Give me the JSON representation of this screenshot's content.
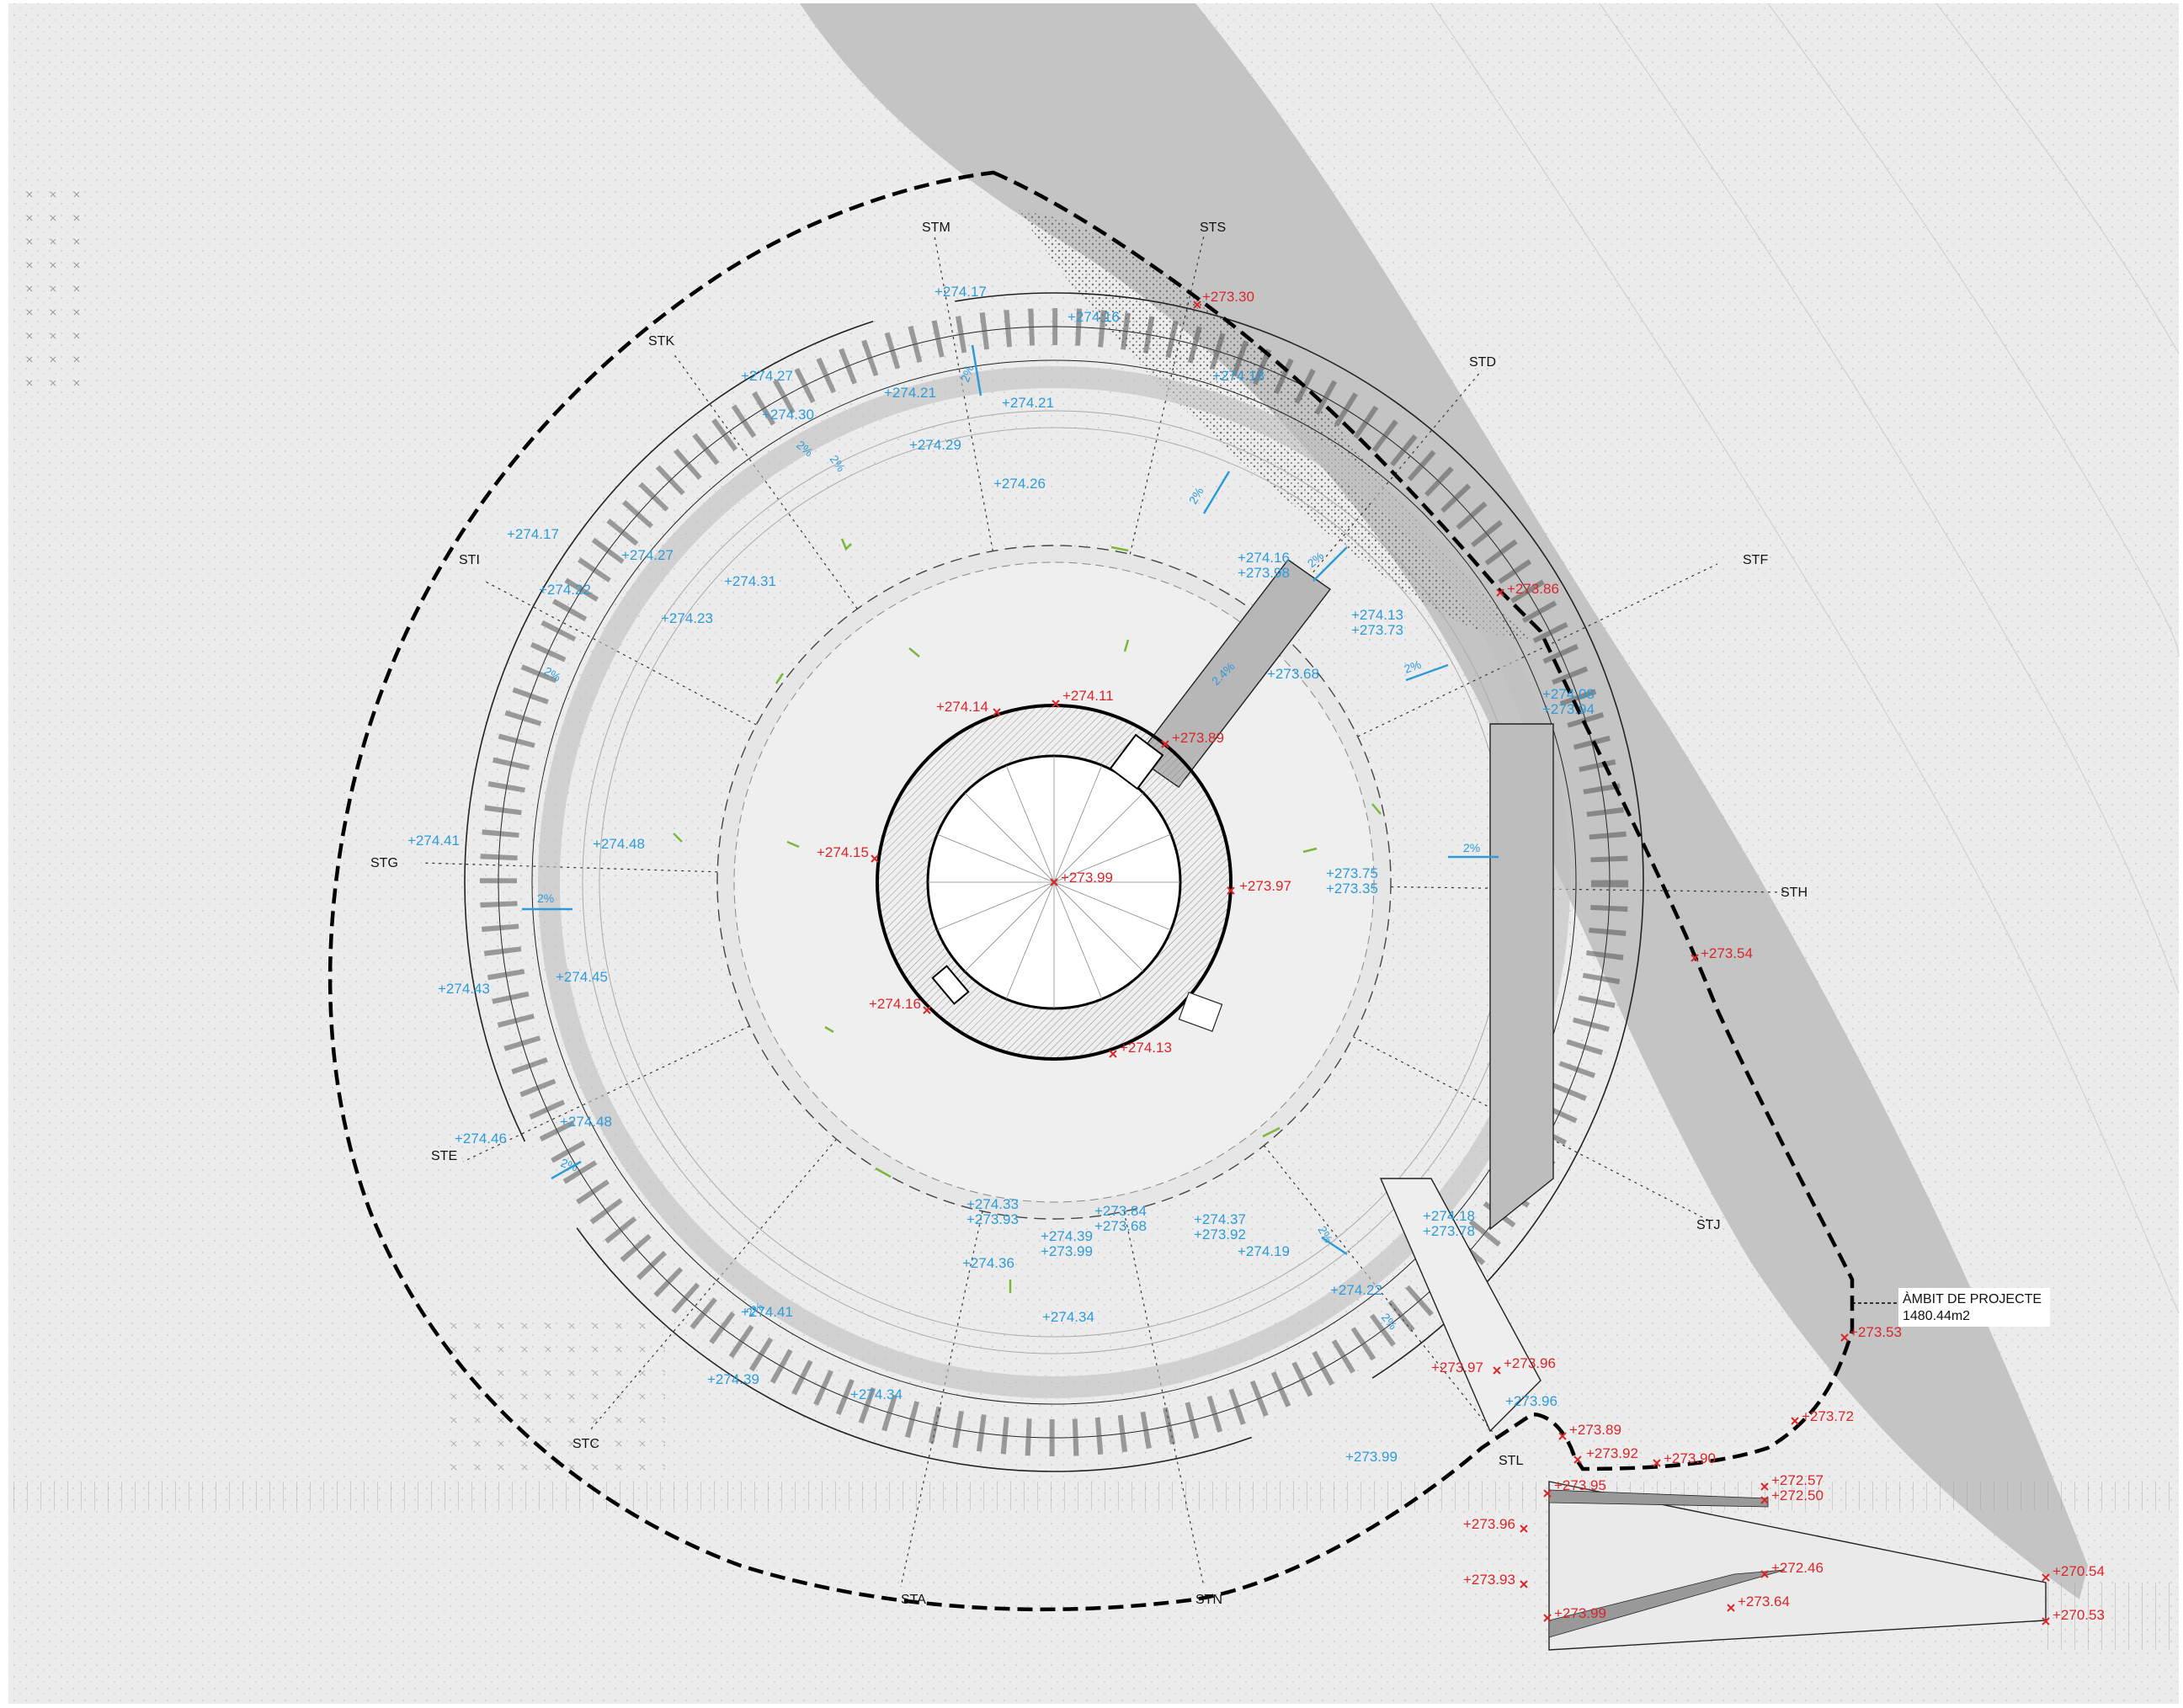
{
  "colors": {
    "background": "#ececec",
    "terrain_dark": "#bdbdbd",
    "red_level": "#d8262b",
    "blue_level": "#2d9bd7",
    "green_arrow": "#7ab83a",
    "line": "#111111"
  },
  "project_boundary": {
    "label": "ÀMBIT DE PROJECTE",
    "area": "1480.44m2"
  },
  "sections": [
    {
      "id": "sta",
      "label": "STA"
    },
    {
      "id": "stc",
      "label": "STC"
    },
    {
      "id": "std",
      "label": "STD"
    },
    {
      "id": "ste",
      "label": "STE"
    },
    {
      "id": "stf",
      "label": "STF"
    },
    {
      "id": "stg",
      "label": "STG"
    },
    {
      "id": "sth",
      "label": "STH"
    },
    {
      "id": "sti",
      "label": "STI"
    },
    {
      "id": "stj",
      "label": "STJ"
    },
    {
      "id": "stk",
      "label": "STK"
    },
    {
      "id": "stl",
      "label": "STL"
    },
    {
      "id": "stm",
      "label": "STM"
    },
    {
      "id": "stn",
      "label": "STN"
    },
    {
      "id": "sts",
      "label": "STS"
    }
  ],
  "red_levels": [
    "+273.30",
    "+273.86",
    "+274.14",
    "+274.11",
    "+273.89",
    "+274.15",
    "+273.99",
    "+273.97",
    "+274.16",
    "+274.13",
    "+273.54",
    "+273.53",
    "+273.72",
    "+273.96",
    "+273.97",
    "+273.89",
    "+273.92",
    "+273.90",
    "+272.57",
    "+272.50",
    "+273.95",
    "+273.96",
    "+273.93",
    "+273.99",
    "+272.46",
    "+273.64",
    "+270.54",
    "+270.53"
  ],
  "blue_levels": [
    "+274.17",
    "+274.16",
    "+274.18",
    "+274.27",
    "+274.21",
    "+274.30",
    "+274.21",
    "+274.29",
    "+274.26",
    "+274.17",
    "+274.27",
    "+274.22",
    "+274.31",
    "+274.23",
    "+274.16",
    "+273.98",
    "+274.13",
    "+273.73",
    "+273.68",
    "+274.08",
    "+273.94",
    "+274.41",
    "+274.48",
    "+273.75",
    "+273.35",
    "+274.43",
    "+274.45",
    "+274.46",
    "+274.48",
    "+274.33",
    "+273.93",
    "+273.84",
    "+273.68",
    "+274.37",
    "+273.92",
    "+274.18",
    "+273.78",
    "+274.39",
    "+273.99",
    "+274.36",
    "+274.19",
    "+274.22",
    "+274.34",
    "+274.39",
    "+274.34",
    "+273.96",
    "+273.99",
    "+274.41"
  ],
  "slopes": [
    "2%",
    "2%",
    "2%",
    "2%",
    "2%",
    "2%",
    "2%",
    "2%",
    "2%",
    "2%",
    "2%",
    "2.4%",
    "2%",
    "2%"
  ]
}
